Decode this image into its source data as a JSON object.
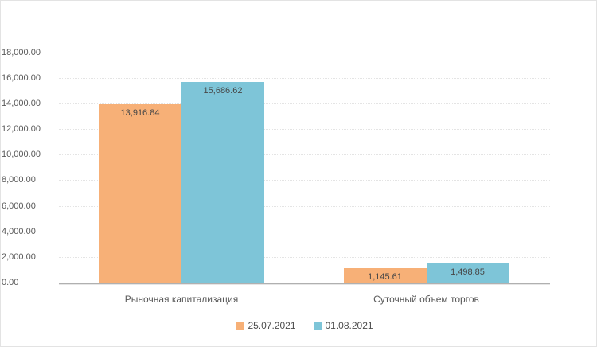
{
  "chart_data": {
    "type": "bar",
    "title": "",
    "categories": [
      "Рыночная капитализация",
      "Суточный объем торгов"
    ],
    "series": [
      {
        "name": "25.07.2021",
        "color": "#F7B077",
        "values": [
          13916.84,
          1145.61
        ],
        "value_labels": [
          "13,916.84",
          "1,145.61"
        ]
      },
      {
        "name": "01.08.2021",
        "color": "#7EC5D8",
        "values": [
          15686.62,
          1498.85
        ],
        "value_labels": [
          "15,686.62",
          "1,498.85"
        ]
      }
    ],
    "y_axis": {
      "min": 0,
      "max": 18000,
      "step": 2000,
      "tick_labels": [
        "0.00",
        "2,000.00",
        "4,000.00",
        "6,000.00",
        "8,000.00",
        "10,000.00",
        "12,000.00",
        "14,000.00",
        "16,000.00",
        "18,000.00"
      ]
    },
    "ylim": [
      0,
      18000
    ],
    "xlabel": "",
    "ylabel": "",
    "grid": "horizontal-dotted",
    "legend_position": "bottom",
    "legend_entries": [
      "25.07.2021",
      "01.08.2021"
    ]
  },
  "styles": {
    "background": "#FFFFFF",
    "frame_border": "#E3E3E3",
    "grid_color": "#E4E4E4",
    "axis_line_color": "#B0B0B0",
    "axis_text_color": "#595959",
    "value_label_color": "#474747"
  }
}
